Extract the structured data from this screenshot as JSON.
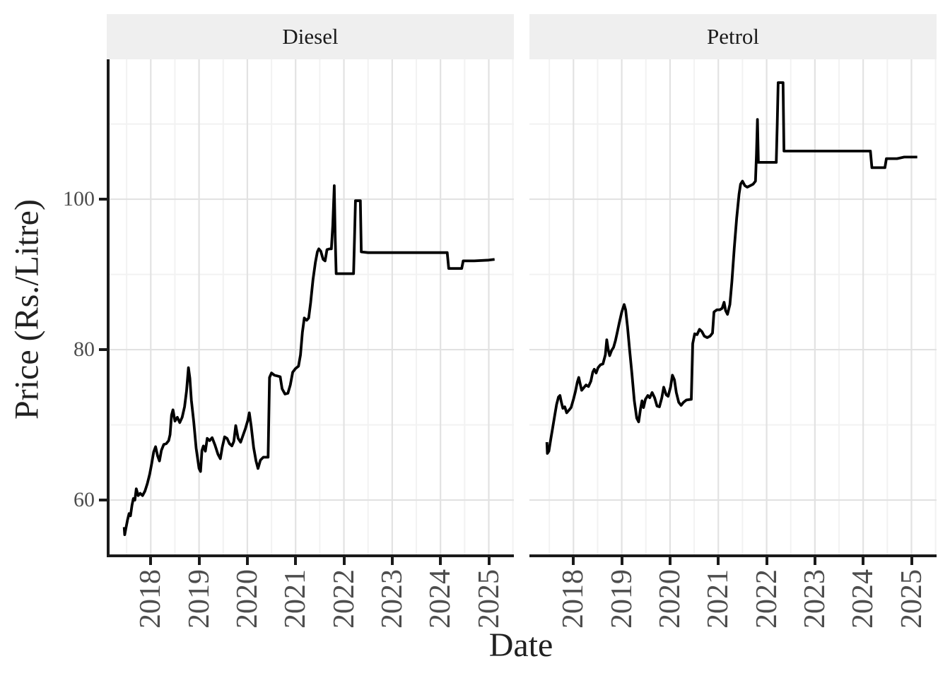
{
  "chart_data": {
    "type": "line",
    "title": "",
    "xlabel": "Date",
    "ylabel": "Price (Rs./Litre)",
    "legend": "none",
    "grid": "major and minor, light gray on white panel",
    "facet_layout": "two horizontal panels sharing y axis",
    "x_domain": [
      2017.088,
      2025.52
    ],
    "y_domain": [
      52.4,
      118.6
    ],
    "x_major_ticks": [
      2018,
      2019,
      2020,
      2021,
      2022,
      2023,
      2024,
      2025
    ],
    "x_tick_labels": [
      "2018",
      "2019",
      "2020",
      "2021",
      "2022",
      "2023",
      "2024",
      "2025"
    ],
    "x_minor_ticks": [
      2017.5,
      2018.5,
      2019.5,
      2020.5,
      2021.5,
      2022.5,
      2023.5,
      2024.5,
      2025.5
    ],
    "y_major_ticks": [
      60,
      80,
      100
    ],
    "y_tick_labels": [
      "60",
      "80",
      "100"
    ],
    "y_minor_ticks": [
      70,
      90,
      110
    ],
    "facets": [
      {
        "label": "Diesel",
        "series_name": "Diesel price (Rs./Litre)",
        "points": [
          [
            2017.45,
            56.4
          ],
          [
            2017.46,
            55.4
          ],
          [
            2017.48,
            56.1
          ],
          [
            2017.52,
            57.4
          ],
          [
            2017.55,
            58.2
          ],
          [
            2017.58,
            57.9
          ],
          [
            2017.61,
            59.3
          ],
          [
            2017.64,
            60.2
          ],
          [
            2017.67,
            60.0
          ],
          [
            2017.7,
            61.5
          ],
          [
            2017.74,
            60.6
          ],
          [
            2017.78,
            60.9
          ],
          [
            2017.83,
            60.6
          ],
          [
            2017.88,
            61.2
          ],
          [
            2017.93,
            62.2
          ],
          [
            2017.98,
            63.5
          ],
          [
            2018.02,
            64.9
          ],
          [
            2018.06,
            66.4
          ],
          [
            2018.1,
            67.1
          ],
          [
            2018.14,
            65.9
          ],
          [
            2018.18,
            65.2
          ],
          [
            2018.22,
            66.6
          ],
          [
            2018.27,
            67.4
          ],
          [
            2018.32,
            67.5
          ],
          [
            2018.37,
            67.9
          ],
          [
            2018.4,
            68.7
          ],
          [
            2018.43,
            71.3
          ],
          [
            2018.46,
            72.0
          ],
          [
            2018.5,
            70.5
          ],
          [
            2018.55,
            71.0
          ],
          [
            2018.6,
            70.3
          ],
          [
            2018.65,
            71.0
          ],
          [
            2018.7,
            72.4
          ],
          [
            2018.74,
            74.5
          ],
          [
            2018.78,
            77.6
          ],
          [
            2018.81,
            76.2
          ],
          [
            2018.84,
            73.3
          ],
          [
            2018.89,
            70.4
          ],
          [
            2018.94,
            66.9
          ],
          [
            2019.0,
            64.2
          ],
          [
            2019.03,
            63.8
          ],
          [
            2019.06,
            66.6
          ],
          [
            2019.09,
            67.2
          ],
          [
            2019.13,
            66.5
          ],
          [
            2019.17,
            68.2
          ],
          [
            2019.22,
            67.9
          ],
          [
            2019.27,
            68.3
          ],
          [
            2019.33,
            67.3
          ],
          [
            2019.39,
            66.1
          ],
          [
            2019.44,
            65.5
          ],
          [
            2019.48,
            67.0
          ],
          [
            2019.53,
            68.4
          ],
          [
            2019.58,
            68.2
          ],
          [
            2019.63,
            67.5
          ],
          [
            2019.68,
            67.2
          ],
          [
            2019.72,
            67.8
          ],
          [
            2019.76,
            69.9
          ],
          [
            2019.81,
            68.2
          ],
          [
            2019.86,
            67.7
          ],
          [
            2019.91,
            68.6
          ],
          [
            2019.96,
            69.5
          ],
          [
            2020.01,
            70.6
          ],
          [
            2020.04,
            71.6
          ],
          [
            2020.08,
            69.8
          ],
          [
            2020.13,
            67.0
          ],
          [
            2020.18,
            65.2
          ],
          [
            2020.22,
            64.2
          ],
          [
            2020.27,
            65.3
          ],
          [
            2020.33,
            65.7
          ],
          [
            2020.43,
            65.7
          ],
          [
            2020.46,
            76.3
          ],
          [
            2020.5,
            76.9
          ],
          [
            2020.56,
            76.6
          ],
          [
            2020.62,
            76.5
          ],
          [
            2020.68,
            76.4
          ],
          [
            2020.72,
            74.8
          ],
          [
            2020.78,
            74.1
          ],
          [
            2020.84,
            74.2
          ],
          [
            2020.89,
            75.3
          ],
          [
            2020.94,
            77.0
          ],
          [
            2021.0,
            77.5
          ],
          [
            2021.06,
            77.8
          ],
          [
            2021.1,
            79.3
          ],
          [
            2021.14,
            82.3
          ],
          [
            2021.18,
            84.2
          ],
          [
            2021.23,
            83.9
          ],
          [
            2021.27,
            84.2
          ],
          [
            2021.31,
            86.2
          ],
          [
            2021.36,
            89.3
          ],
          [
            2021.41,
            91.6
          ],
          [
            2021.45,
            93.0
          ],
          [
            2021.48,
            93.4
          ],
          [
            2021.52,
            93.1
          ],
          [
            2021.57,
            92.0
          ],
          [
            2021.61,
            91.8
          ],
          [
            2021.65,
            93.3
          ],
          [
            2021.7,
            93.4
          ],
          [
            2021.74,
            93.4
          ],
          [
            2021.77,
            96.5
          ],
          [
            2021.8,
            101.8
          ],
          [
            2021.82,
            95.0
          ],
          [
            2021.84,
            90.1
          ],
          [
            2021.95,
            90.1
          ],
          [
            2022.08,
            90.1
          ],
          [
            2022.2,
            90.1
          ],
          [
            2022.22,
            95.0
          ],
          [
            2022.24,
            99.8
          ],
          [
            2022.34,
            99.8
          ],
          [
            2022.36,
            93.0
          ],
          [
            2022.5,
            92.9
          ],
          [
            2022.9,
            92.9
          ],
          [
            2023.4,
            92.9
          ],
          [
            2023.9,
            92.9
          ],
          [
            2024.14,
            92.9
          ],
          [
            2024.17,
            90.8
          ],
          [
            2024.44,
            90.8
          ],
          [
            2024.47,
            91.8
          ],
          [
            2024.7,
            91.8
          ],
          [
            2025.0,
            91.9
          ],
          [
            2025.12,
            92.0
          ]
        ]
      },
      {
        "label": "Petrol",
        "series_name": "Petrol price (Rs./Litre)",
        "points": [
          [
            2017.45,
            67.7
          ],
          [
            2017.46,
            66.2
          ],
          [
            2017.49,
            66.5
          ],
          [
            2017.53,
            68.1
          ],
          [
            2017.57,
            69.6
          ],
          [
            2017.61,
            71.2
          ],
          [
            2017.65,
            72.7
          ],
          [
            2017.69,
            73.7
          ],
          [
            2017.72,
            73.9
          ],
          [
            2017.75,
            73.0
          ],
          [
            2017.78,
            72.2
          ],
          [
            2017.82,
            72.4
          ],
          [
            2017.86,
            71.6
          ],
          [
            2017.9,
            71.9
          ],
          [
            2017.95,
            72.3
          ],
          [
            2018.0,
            73.4
          ],
          [
            2018.04,
            74.4
          ],
          [
            2018.08,
            75.7
          ],
          [
            2018.11,
            76.3
          ],
          [
            2018.14,
            75.4
          ],
          [
            2018.17,
            74.6
          ],
          [
            2018.21,
            74.9
          ],
          [
            2018.26,
            75.3
          ],
          [
            2018.31,
            75.1
          ],
          [
            2018.36,
            75.8
          ],
          [
            2018.4,
            77.0
          ],
          [
            2018.43,
            77.4
          ],
          [
            2018.47,
            76.9
          ],
          [
            2018.51,
            77.6
          ],
          [
            2018.56,
            78.0
          ],
          [
            2018.61,
            78.1
          ],
          [
            2018.66,
            79.3
          ],
          [
            2018.69,
            81.3
          ],
          [
            2018.72,
            80.0
          ],
          [
            2018.75,
            79.2
          ],
          [
            2018.79,
            79.9
          ],
          [
            2018.83,
            80.3
          ],
          [
            2018.87,
            81.2
          ],
          [
            2018.91,
            82.4
          ],
          [
            2018.95,
            83.6
          ],
          [
            2019.0,
            85.0
          ],
          [
            2019.05,
            86.0
          ],
          [
            2019.08,
            85.3
          ],
          [
            2019.12,
            83.0
          ],
          [
            2019.16,
            80.2
          ],
          [
            2019.21,
            76.8
          ],
          [
            2019.26,
            73.2
          ],
          [
            2019.31,
            70.9
          ],
          [
            2019.35,
            70.4
          ],
          [
            2019.39,
            72.2
          ],
          [
            2019.42,
            73.2
          ],
          [
            2019.45,
            72.3
          ],
          [
            2019.49,
            73.4
          ],
          [
            2019.54,
            73.9
          ],
          [
            2019.58,
            73.6
          ],
          [
            2019.63,
            74.3
          ],
          [
            2019.68,
            73.6
          ],
          [
            2019.73,
            72.5
          ],
          [
            2019.78,
            72.4
          ],
          [
            2019.83,
            73.6
          ],
          [
            2019.87,
            75.0
          ],
          [
            2019.92,
            74.0
          ],
          [
            2019.96,
            73.8
          ],
          [
            2020.01,
            75.0
          ],
          [
            2020.05,
            76.6
          ],
          [
            2020.09,
            76.0
          ],
          [
            2020.13,
            74.3
          ],
          [
            2020.18,
            73.0
          ],
          [
            2020.23,
            72.6
          ],
          [
            2020.28,
            73.0
          ],
          [
            2020.34,
            73.3
          ],
          [
            2020.44,
            73.4
          ],
          [
            2020.47,
            80.8
          ],
          [
            2020.51,
            82.1
          ],
          [
            2020.56,
            82.0
          ],
          [
            2020.61,
            82.7
          ],
          [
            2020.66,
            82.4
          ],
          [
            2020.71,
            81.8
          ],
          [
            2020.77,
            81.6
          ],
          [
            2020.83,
            81.8
          ],
          [
            2020.88,
            82.2
          ],
          [
            2020.91,
            85.0
          ],
          [
            2020.97,
            85.3
          ],
          [
            2021.03,
            85.3
          ],
          [
            2021.08,
            85.5
          ],
          [
            2021.12,
            86.3
          ],
          [
            2021.15,
            85.2
          ],
          [
            2021.19,
            84.7
          ],
          [
            2021.24,
            86.0
          ],
          [
            2021.28,
            89.0
          ],
          [
            2021.33,
            93.5
          ],
          [
            2021.38,
            97.5
          ],
          [
            2021.43,
            100.7
          ],
          [
            2021.46,
            102.0
          ],
          [
            2021.5,
            102.4
          ],
          [
            2021.55,
            101.8
          ],
          [
            2021.6,
            101.6
          ],
          [
            2021.66,
            101.8
          ],
          [
            2021.72,
            102.0
          ],
          [
            2021.77,
            102.4
          ],
          [
            2021.79,
            106.0
          ],
          [
            2021.81,
            110.6
          ],
          [
            2021.83,
            104.9
          ],
          [
            2021.95,
            104.9
          ],
          [
            2022.08,
            104.9
          ],
          [
            2022.2,
            104.9
          ],
          [
            2022.22,
            110.0
          ],
          [
            2022.24,
            115.5
          ],
          [
            2022.34,
            115.5
          ],
          [
            2022.36,
            106.4
          ],
          [
            2022.5,
            106.4
          ],
          [
            2022.9,
            106.4
          ],
          [
            2023.4,
            106.4
          ],
          [
            2023.9,
            106.4
          ],
          [
            2024.15,
            106.4
          ],
          [
            2024.18,
            104.2
          ],
          [
            2024.45,
            104.2
          ],
          [
            2024.48,
            105.4
          ],
          [
            2024.7,
            105.4
          ],
          [
            2024.85,
            105.6
          ],
          [
            2025.0,
            105.6
          ],
          [
            2025.12,
            105.6
          ]
        ]
      }
    ]
  },
  "colors": {
    "line": "#000000",
    "panel_bg": "#ffffff",
    "strip_bg": "#efefef",
    "strip_text": "#1a1a1a",
    "grid_major": "#e2e2e2",
    "grid_minor": "#f2f2f2",
    "axis_line": "#1a1a1a",
    "tick_mark": "#1a1a1a",
    "tick_text": "#4d4d4d",
    "title_text": "#212121"
  }
}
